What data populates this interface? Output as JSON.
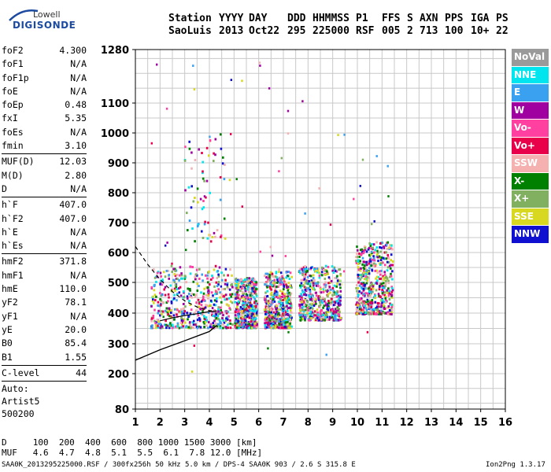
{
  "logo": {
    "line1": "Lowell",
    "line2": "DIGISONDE"
  },
  "header": {
    "station": [
      "Station",
      "SaoLuis"
    ],
    "yyyy": [
      "YYYY",
      "2013"
    ],
    "day": [
      "DAY",
      "Oct22"
    ],
    "ddd": [
      "DDD",
      "295"
    ],
    "hhmmss": [
      "HHMMSS",
      "225000"
    ],
    "p1": [
      "P1",
      "RSF"
    ],
    "ffs": [
      "FFS",
      "005"
    ],
    "s": [
      "S",
      "2"
    ],
    "axn": [
      "AXN",
      "713"
    ],
    "pps": [
      "PPS",
      "100"
    ],
    "iga": [
      "IGA",
      "10+"
    ],
    "ps": [
      "PS",
      "22"
    ]
  },
  "params": {
    "group1": [
      {
        "k": "foF2",
        "v": "4.300"
      },
      {
        "k": "foF1",
        "v": "N/A"
      },
      {
        "k": "foF1p",
        "v": "N/A"
      },
      {
        "k": "foE",
        "v": "N/A"
      },
      {
        "k": "foEp",
        "v": "0.48"
      },
      {
        "k": "fxI",
        "v": "5.35"
      },
      {
        "k": "foEs",
        "v": "N/A"
      },
      {
        "k": "fmin",
        "v": "3.10"
      }
    ],
    "group2": [
      {
        "k": "MUF(D)",
        "v": "12.03"
      },
      {
        "k": "M(D)",
        "v": "2.80"
      },
      {
        "k": "D",
        "v": "N/A"
      }
    ],
    "group3": [
      {
        "k": "h`F",
        "v": "407.0"
      },
      {
        "k": "h`F2",
        "v": "407.0"
      },
      {
        "k": "h`E",
        "v": "N/A"
      },
      {
        "k": "h`Es",
        "v": "N/A"
      }
    ],
    "group4": [
      {
        "k": "hmF2",
        "v": "371.8"
      },
      {
        "k": "hmF1",
        "v": "N/A"
      },
      {
        "k": "hmE",
        "v": "110.0"
      },
      {
        "k": "yF2",
        "v": "78.1"
      },
      {
        "k": "yF1",
        "v": "N/A"
      },
      {
        "k": "yE",
        "v": "20.0"
      },
      {
        "k": "B0",
        "v": "85.4"
      },
      {
        "k": "B1",
        "v": "1.55"
      }
    ],
    "clevel": {
      "k": "C-level",
      "v": "44"
    },
    "auto": [
      "Auto:",
      "Artist5",
      "500200"
    ]
  },
  "legend": [
    {
      "label": "NoVal",
      "color": "#9a9a9a"
    },
    {
      "label": "NNE",
      "color": "#00e5ee"
    },
    {
      "label": "E",
      "color": "#3aa0f0"
    },
    {
      "label": "W",
      "color": "#a000a0"
    },
    {
      "label": "Vo-",
      "color": "#ff40a0"
    },
    {
      "label": "Vo+",
      "color": "#e8004a"
    },
    {
      "label": "SSW",
      "color": "#f5b0b0"
    },
    {
      "label": "X-",
      "color": "#008000"
    },
    {
      "label": "X+",
      "color": "#80b060"
    },
    {
      "label": "SSE",
      "color": "#d8d820"
    },
    {
      "label": "NNW",
      "color": "#1010d0"
    }
  ],
  "bottom": {
    "d_label": "D",
    "d_values": "100  200  400  600  800 1000 1500 3000 [km]",
    "muf_label": "MUF",
    "muf_values": "4.6  4.7  4.8  5.1  5.5  6.1  7.8 12.0 [MHz]",
    "footer": "SAA0K_2013295225000.RSF / 300fx256h 50 kHz 5.0 km / DPS-4 SAA0K 903 / 2.6 S 315.8 E",
    "version": "Ion2Png 1.3.17"
  },
  "chart_data": {
    "type": "scatter",
    "title": "",
    "xlabel": "",
    "ylabel": "",
    "xlim": [
      1,
      16
    ],
    "ylim": [
      80,
      1280
    ],
    "x_ticks": [
      1,
      2,
      3,
      4,
      5,
      6,
      7,
      8,
      9,
      10,
      11,
      12,
      13,
      14,
      15,
      16
    ],
    "y_ticks": [
      80,
      200,
      300,
      400,
      500,
      600,
      700,
      800,
      900,
      1000,
      1100,
      1280
    ],
    "grid": true,
    "legend_position": "right",
    "series": [
      {
        "name": "NoVal",
        "color": "#9a9a9a"
      },
      {
        "name": "NNE",
        "color": "#00e5ee"
      },
      {
        "name": "E",
        "color": "#3aa0f0"
      },
      {
        "name": "W",
        "color": "#a000a0"
      },
      {
        "name": "Vo-",
        "color": "#ff40a0"
      },
      {
        "name": "Vo+",
        "color": "#e8004a"
      },
      {
        "name": "SSW",
        "color": "#f5b0b0"
      },
      {
        "name": "X-",
        "color": "#008000"
      },
      {
        "name": "X+",
        "color": "#80b060"
      },
      {
        "name": "SSE",
        "color": "#d8d820"
      },
      {
        "name": "NNW",
        "color": "#1010d0"
      }
    ],
    "echo_clusters": [
      {
        "x": [
          1.6,
          4.9
        ],
        "y": [
          355,
          560
        ]
      },
      {
        "x": [
          5.0,
          5.9
        ],
        "y": [
          355,
          520
        ]
      },
      {
        "x": [
          6.2,
          7.3
        ],
        "y": [
          355,
          540
        ]
      },
      {
        "x": [
          7.6,
          9.3
        ],
        "y": [
          380,
          560
        ]
      },
      {
        "x": [
          9.9,
          11.4
        ],
        "y": [
          400,
          640
        ]
      },
      {
        "x": [
          2.9,
          4.6
        ],
        "y": [
          640,
          1000
        ]
      }
    ],
    "profile_line": [
      [
        1.0,
        245
      ],
      [
        2.0,
        280
      ],
      [
        3.0,
        310
      ],
      [
        4.0,
        340
      ],
      [
        4.3,
        360
      ]
    ],
    "trace_dashed": [
      [
        1.0,
        620
      ],
      [
        1.5,
        560
      ],
      [
        2.0,
        510
      ],
      [
        2.5,
        470
      ],
      [
        3.0,
        440
      ],
      [
        3.5,
        420
      ],
      [
        4.0,
        408
      ],
      [
        4.3,
        407
      ]
    ],
    "trace_solid_low": [
      [
        2.0,
        375
      ],
      [
        2.5,
        385
      ],
      [
        3.0,
        392
      ],
      [
        3.5,
        398
      ],
      [
        4.0,
        405
      ],
      [
        4.3,
        407
      ]
    ]
  }
}
